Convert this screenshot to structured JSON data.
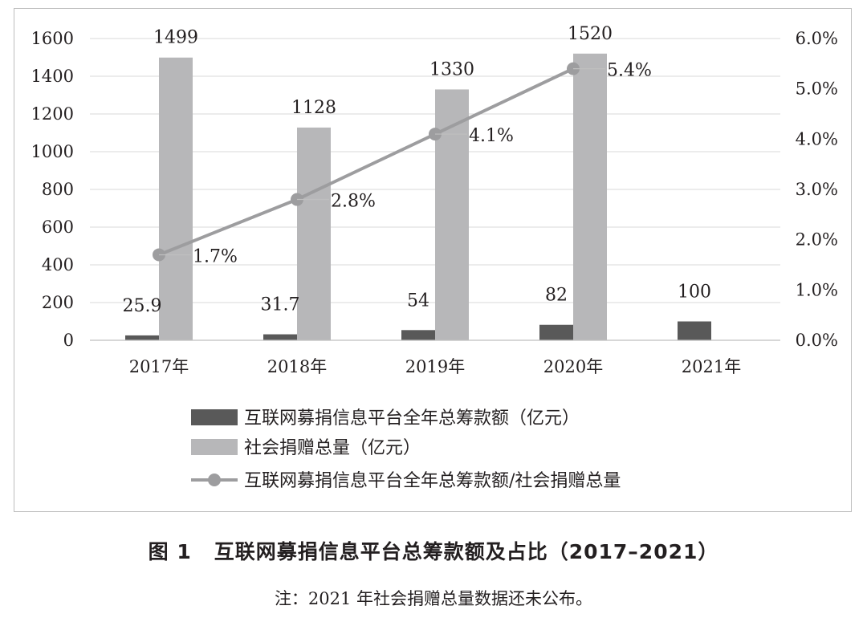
{
  "figure": {
    "number": "图 1",
    "caption": "互联网募捐信息平台总筹款额及占比（2017–2021）",
    "note": "注：2021 年社会捐赠总量数据还未公布。"
  },
  "chart_data": {
    "type": "bar",
    "categories": [
      "2017年",
      "2018年",
      "2019年",
      "2020年",
      "2021年"
    ],
    "series": [
      {
        "name": "互联网募捐信息平台全年总筹款额（亿元）",
        "kind": "bar",
        "axis": "left",
        "color": "#595959",
        "values": [
          25.9,
          31.7,
          54,
          82,
          100
        ],
        "labels": [
          "25.9",
          "31.7",
          "54",
          "82",
          "100"
        ]
      },
      {
        "name": "社会捐赠总量（亿元）",
        "kind": "bar",
        "axis": "left",
        "color": "#b7b7b9",
        "values": [
          1499,
          1128,
          1330,
          1520,
          null
        ],
        "labels": [
          "1499",
          "1128",
          "1330",
          "1520",
          ""
        ]
      },
      {
        "name": "互联网募捐信息平台全年总筹款额/社会捐赠总量",
        "kind": "line",
        "axis": "right",
        "color": "#9d9d9f",
        "values": [
          1.7,
          2.8,
          4.1,
          5.4,
          null
        ],
        "labels": [
          "1.7%",
          "2.8%",
          "4.1%",
          "5.4%",
          ""
        ]
      }
    ],
    "y_left": {
      "range": [
        0,
        1600
      ],
      "ticks": [
        0,
        200,
        400,
        600,
        800,
        1000,
        1200,
        1400,
        1600
      ],
      "tick_labels": [
        "0",
        "200",
        "400",
        "600",
        "800",
        "1000",
        "1200",
        "1400",
        "1600"
      ]
    },
    "y_right": {
      "range": [
        0,
        6
      ],
      "ticks": [
        0,
        1,
        2,
        3,
        4,
        5,
        6
      ],
      "tick_labels": [
        "0.0%",
        "1.0%",
        "2.0%",
        "3.0%",
        "4.0%",
        "5.0%",
        "6.0%"
      ]
    },
    "grid": true,
    "legend": "bottom"
  }
}
